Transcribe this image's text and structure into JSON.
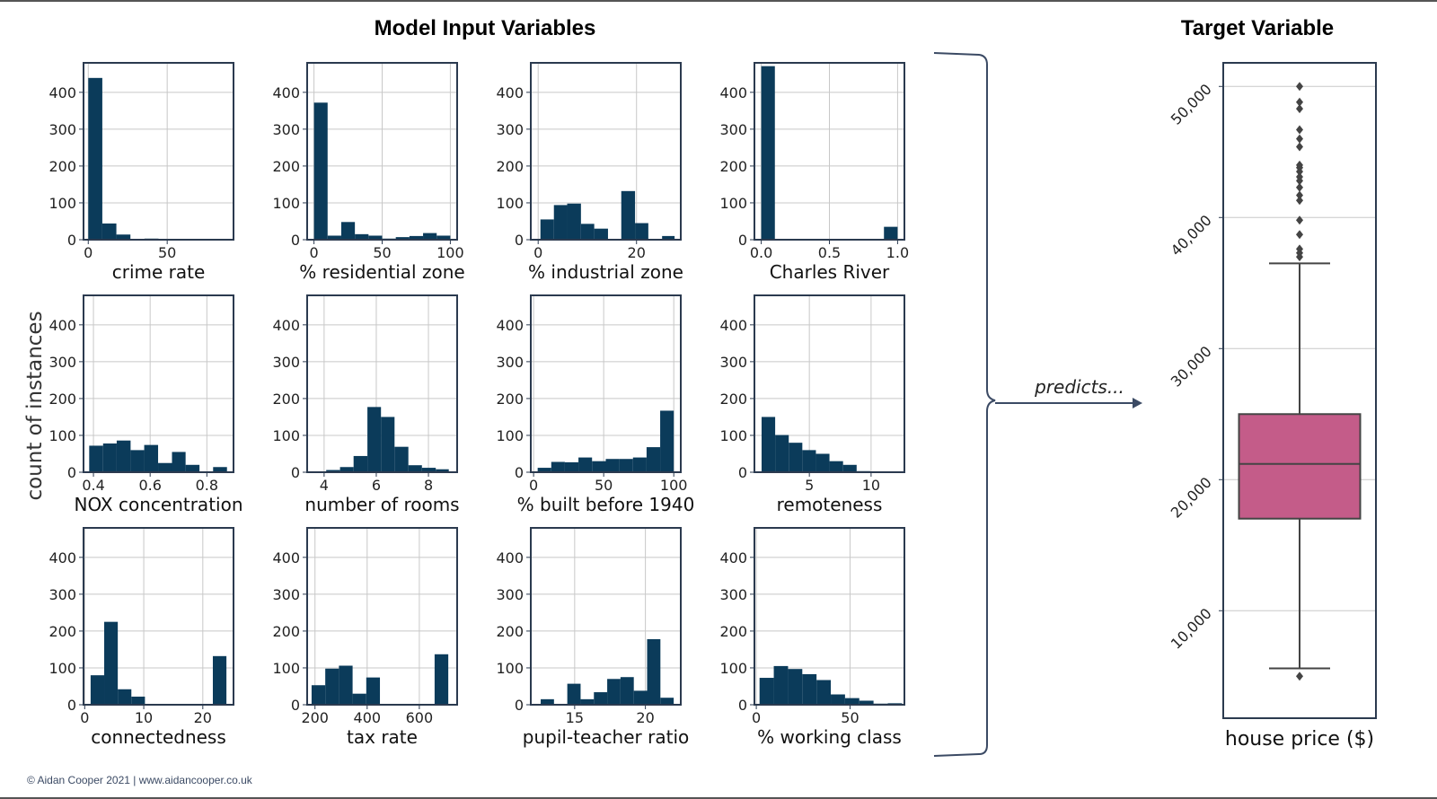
{
  "left_title": "Model Input Variables",
  "right_title": "Target Variable",
  "connector_label": "predicts...",
  "footer": "© Aidan Cooper 2021 | www.aidancooper.co.uk",
  "colors": {
    "bar": "#0b3b5a",
    "box": "#c45c89",
    "axis": "#2b3a4f",
    "grid": "#c8c8c8",
    "arrow": "#3b4a64"
  },
  "chart_data": [
    {
      "type": "bar",
      "xlabel": "crime rate",
      "ylabel": "count of instances",
      "ylim": [
        0,
        480
      ],
      "yticks": [
        0,
        100,
        200,
        300,
        400
      ],
      "xlim": [
        -3,
        92
      ],
      "xticks": [
        0,
        50
      ],
      "bin_edges": [
        0.006,
        8.9,
        17.8,
        26.7,
        35.6,
        44.5,
        53.4,
        62.3,
        71.2,
        80.1,
        89.0
      ],
      "values": [
        439,
        44,
        14,
        1,
        3,
        2,
        0,
        1,
        0,
        1
      ]
    },
    {
      "type": "bar",
      "xlabel": "% residential zone",
      "ylim": [
        0,
        480
      ],
      "yticks": [
        0,
        100,
        200,
        300,
        400
      ],
      "xlim": [
        -5,
        105
      ],
      "xticks": [
        0,
        50,
        100
      ],
      "bin_edges": [
        0,
        10,
        20,
        30,
        40,
        50,
        60,
        70,
        80,
        90,
        100
      ],
      "values": [
        372,
        11,
        48,
        15,
        11,
        3,
        7,
        10,
        18,
        11
      ]
    },
    {
      "type": "bar",
      "xlabel": "% industrial zone",
      "ylim": [
        0,
        480
      ],
      "yticks": [
        0,
        100,
        200,
        300,
        400
      ],
      "xlim": [
        -1.5,
        29
      ],
      "xticks": [
        0,
        20
      ],
      "bin_edges": [
        0.46,
        3.2,
        5.9,
        8.7,
        11.4,
        14.2,
        16.9,
        19.7,
        22.4,
        25.2,
        27.74
      ],
      "values": [
        55,
        94,
        98,
        43,
        30,
        2,
        132,
        45,
        0,
        10
      ]
    },
    {
      "type": "bar",
      "xlabel": "Charles River",
      "ylim": [
        0,
        480
      ],
      "yticks": [
        0,
        100,
        200,
        300,
        400
      ],
      "xlim": [
        -0.05,
        1.05
      ],
      "xticks": [
        "0.0",
        "0.5",
        "1.0"
      ],
      "bin_edges": [
        0,
        0.1,
        0.2,
        0.3,
        0.4,
        0.5,
        0.6,
        0.7,
        0.8,
        0.9,
        1.0
      ],
      "values": [
        471,
        0,
        0,
        0,
        0,
        0,
        0,
        0,
        0,
        35
      ]
    },
    {
      "type": "bar",
      "xlabel": "NOX concentration",
      "ylim": [
        0,
        480
      ],
      "yticks": [
        0,
        100,
        200,
        300,
        400
      ],
      "xlim": [
        0.365,
        0.894
      ],
      "xticks": [
        "0.4",
        "0.6",
        "0.8"
      ],
      "bin_edges": [
        0.385,
        0.434,
        0.482,
        0.531,
        0.579,
        0.628,
        0.677,
        0.725,
        0.774,
        0.822,
        0.871
      ],
      "values": [
        72,
        78,
        86,
        60,
        74,
        25,
        55,
        20,
        0,
        14
      ]
    },
    {
      "type": "bar",
      "xlabel": "number of rooms",
      "ylim": [
        0,
        480
      ],
      "yticks": [
        0,
        100,
        200,
        300,
        400
      ],
      "xlim": [
        3.35,
        9.1
      ],
      "xticks": [
        4,
        6,
        8
      ],
      "bin_edges": [
        3.56,
        4.08,
        4.61,
        5.13,
        5.66,
        6.18,
        6.7,
        7.23,
        7.75,
        8.28,
        8.78
      ],
      "values": [
        1,
        6,
        14,
        44,
        177,
        150,
        69,
        19,
        12,
        8
      ]
    },
    {
      "type": "bar",
      "xlabel": "% built before 1940",
      "ylim": [
        0,
        480
      ],
      "yticks": [
        0,
        100,
        200,
        300,
        400
      ],
      "xlim": [
        -2,
        105
      ],
      "xticks": [
        0,
        50,
        100
      ],
      "bin_edges": [
        2.9,
        12.6,
        22.3,
        32.0,
        41.7,
        51.5,
        61.2,
        70.9,
        80.6,
        90.3,
        100.0
      ],
      "values": [
        12,
        28,
        27,
        40,
        30,
        36,
        36,
        40,
        68,
        167
      ]
    },
    {
      "type": "bar",
      "xlabel": "remoteness",
      "ylim": [
        0,
        480
      ],
      "yticks": [
        0,
        100,
        200,
        300,
        400
      ],
      "xlim": [
        0.55,
        12.7
      ],
      "xticks": [
        5,
        10
      ],
      "bin_edges": [
        1.13,
        2.23,
        3.33,
        4.43,
        5.53,
        6.63,
        7.73,
        8.83,
        9.93,
        11.03,
        12.13
      ],
      "values": [
        150,
        101,
        80,
        60,
        50,
        30,
        20,
        3,
        2,
        2
      ]
    },
    {
      "type": "bar",
      "xlabel": "connectedness",
      "ylim": [
        0,
        480
      ],
      "yticks": [
        0,
        100,
        200,
        300,
        400
      ],
      "xlim": [
        -0.2,
        25.2
      ],
      "xticks": [
        0,
        10,
        20
      ],
      "bin_edges": [
        1,
        3.3,
        5.6,
        7.9,
        10.2,
        12.5,
        14.8,
        17.1,
        19.4,
        21.7,
        24
      ],
      "values": [
        80,
        225,
        42,
        22,
        0,
        0,
        0,
        0,
        0,
        132
      ]
    },
    {
      "type": "bar",
      "xlabel": "tax rate",
      "ylim": [
        0,
        480
      ],
      "yticks": [
        0,
        100,
        200,
        300,
        400
      ],
      "xlim": [
        170,
        745
      ],
      "xticks": [
        200,
        400,
        600
      ],
      "bin_edges": [
        187,
        239.4,
        291.8,
        344.2,
        396.6,
        449,
        501.4,
        553.8,
        606.2,
        658.6,
        711
      ],
      "values": [
        53,
        98,
        106,
        30,
        74,
        0,
        0,
        0,
        0,
        137
      ]
    },
    {
      "type": "bar",
      "xlabel": "pupil-teacher ratio",
      "ylim": [
        0,
        480
      ],
      "yticks": [
        0,
        100,
        200,
        300,
        400
      ],
      "xlim": [
        11.9,
        22.5
      ],
      "xticks": [
        15,
        20
      ],
      "bin_edges": [
        12.6,
        13.54,
        14.48,
        15.42,
        16.36,
        17.3,
        18.24,
        19.18,
        20.12,
        21.06,
        22.0
      ],
      "values": [
        15,
        0,
        57,
        15,
        34,
        70,
        75,
        38,
        178,
        19
      ]
    },
    {
      "type": "bar",
      "xlabel": "% working class",
      "ylim": [
        0,
        480
      ],
      "yticks": [
        0,
        100,
        200,
        300,
        400
      ],
      "xlim": [
        -1,
        79
      ],
      "xticks": [
        0,
        50
      ],
      "bin_edges": [
        1.73,
        9.33,
        16.93,
        24.53,
        32.13,
        39.73,
        47.33,
        54.93,
        62.53,
        70.13,
        77.73
      ],
      "values": [
        73,
        105,
        97,
        83,
        67,
        28,
        18,
        11,
        3,
        4
      ]
    },
    {
      "type": "box",
      "xlabel": "house price ($)",
      "ylim": [
        1800,
        51800
      ],
      "yticks": [
        "10,000",
        "20,000",
        "30,000",
        "40,000",
        "50,000"
      ],
      "median": 21200,
      "q1": 17025,
      "q3": 25000,
      "whisker_low": 5600,
      "whisker_high": 36500,
      "outliers": [
        5000,
        37000,
        37300,
        37600,
        38700,
        39800,
        41300,
        41700,
        42300,
        42800,
        43100,
        43500,
        43800,
        44000,
        45400,
        46000,
        46700,
        48300,
        48800,
        50000
      ]
    }
  ]
}
